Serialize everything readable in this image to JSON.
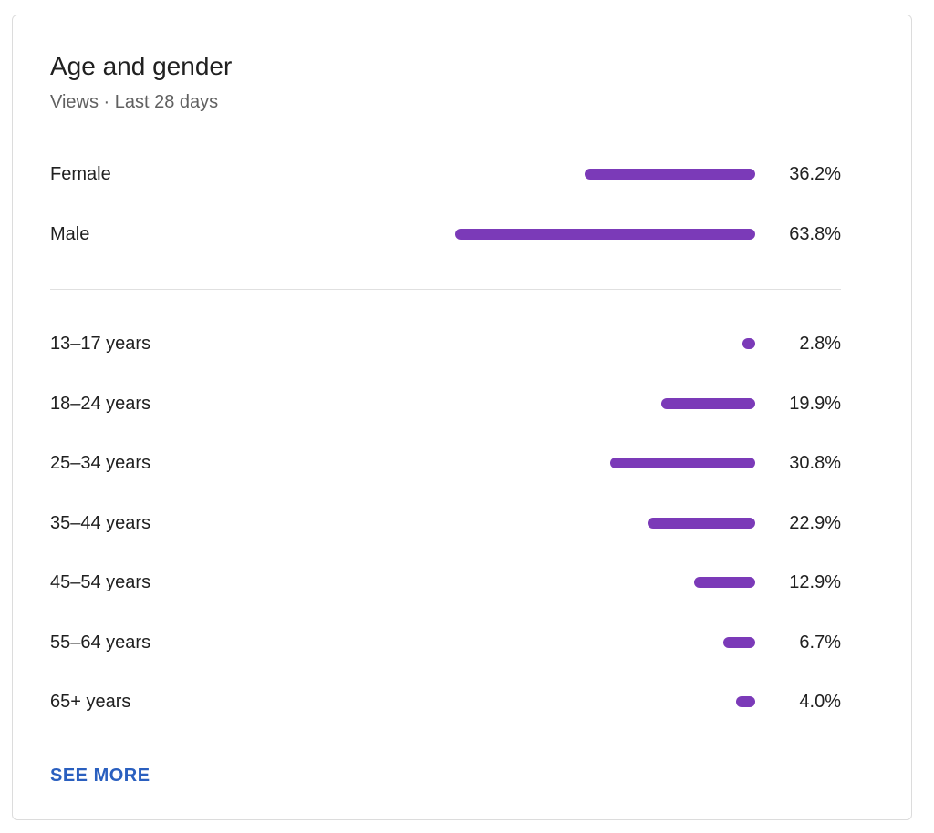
{
  "card": {
    "title": "Age and gender",
    "subtitle": "Views · Last 28 days",
    "see_more_label": "SEE MORE"
  },
  "chart_data": {
    "type": "bar",
    "orientation": "horizontal",
    "bar_color": "#7b3ab8",
    "gender": [
      {
        "label": "Female",
        "value": 36.2,
        "value_label": "36.2%"
      },
      {
        "label": "Male",
        "value": 63.8,
        "value_label": "63.8%"
      }
    ],
    "age": [
      {
        "label": "13–17 years",
        "value": 2.8,
        "value_label": "2.8%"
      },
      {
        "label": "18–24 years",
        "value": 19.9,
        "value_label": "19.9%"
      },
      {
        "label": "25–34 years",
        "value": 30.8,
        "value_label": "30.8%"
      },
      {
        "label": "35–44 years",
        "value": 22.9,
        "value_label": "22.9%"
      },
      {
        "label": "45–54 years",
        "value": 12.9,
        "value_label": "12.9%"
      },
      {
        "label": "55–64 years",
        "value": 6.7,
        "value_label": "6.7%"
      },
      {
        "label": "65+ years",
        "value": 4.0,
        "value_label": "4.0%"
      }
    ]
  }
}
